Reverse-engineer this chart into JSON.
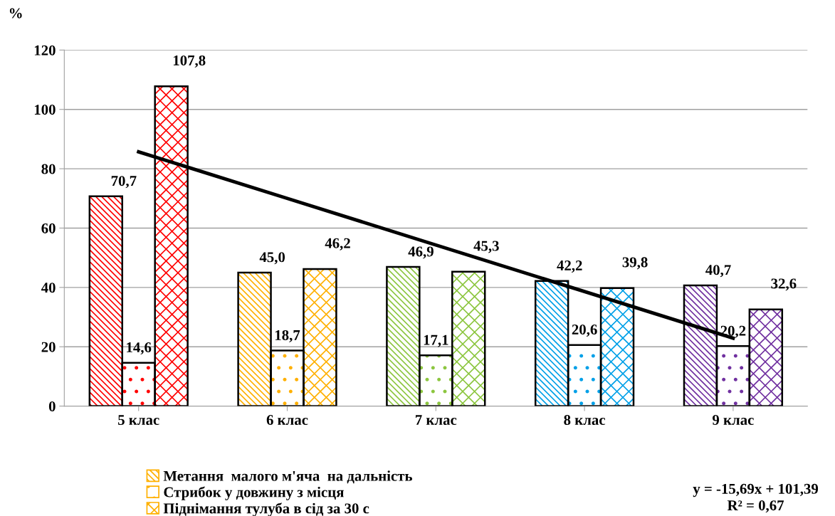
{
  "chart_data": {
    "type": "bar",
    "ylabel": "%",
    "categories": [
      "5 клас",
      "6 клас",
      "7 клас",
      "8 клас",
      "9 клас"
    ],
    "series": [
      {
        "name": "Метання  малого м'яча  на дальність",
        "colors": [
          "#ff0000",
          "#ffb000",
          "#8cc63f",
          "#00a0e8",
          "#7030a0"
        ],
        "values": [
          70.7,
          45.0,
          46.9,
          42.2,
          40.7
        ],
        "value_labels": [
          "70,7",
          "45,0",
          "46,9",
          "42,2",
          "40,7"
        ]
      },
      {
        "name": "Стрибок у довжину з місця",
        "colors": [
          "#ff0000",
          "#ffb000",
          "#8cc63f",
          "#00a0e8",
          "#7030a0"
        ],
        "values": [
          14.6,
          18.7,
          17.1,
          20.6,
          20.2
        ],
        "value_labels": [
          "14,6",
          "18,7",
          "17,1",
          "20,6",
          "20,2"
        ]
      },
      {
        "name": "Піднімання тулуба в сід за 30 с",
        "colors": [
          "#ff0000",
          "#ffb000",
          "#8cc63f",
          "#00a0e8",
          "#7030a0"
        ],
        "values": [
          107.8,
          46.2,
          45.3,
          39.8,
          32.6
        ],
        "value_labels": [
          "107,8",
          "46,2",
          "45,3",
          "39,8",
          "32,6"
        ]
      },
      {
        "type": "line",
        "color": "#000000",
        "values": [
          85.7,
          70.0,
          54.3,
          38.6,
          22.9
        ]
      }
    ],
    "ylim": [
      0,
      120
    ],
    "yticks": [
      0,
      20,
      40,
      60,
      80,
      100,
      120
    ],
    "grid": "y",
    "legend": "bottom",
    "annotations": [
      "y = -15,69x + 101,39\nR² = 0,67"
    ]
  }
}
